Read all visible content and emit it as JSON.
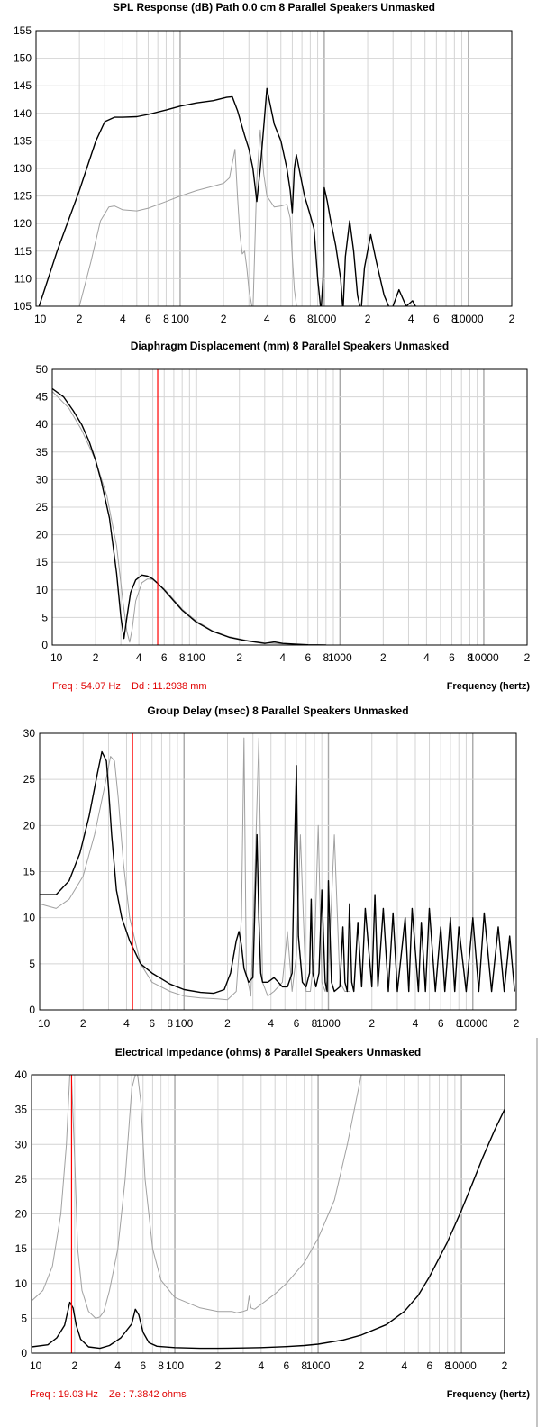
{
  "chart_data": [
    {
      "type": "line",
      "title": "SPL Response (dB)   Path 0.0 cm   8 Parallel Speakers   Unmasked",
      "xscale": "log",
      "xlim": [
        10,
        20000
      ],
      "ylim": [
        105,
        155
      ],
      "yticks": [
        105,
        110,
        115,
        120,
        125,
        130,
        135,
        140,
        145,
        150,
        155
      ],
      "xtick_labels": [
        {
          "x": 10,
          "label": "10"
        },
        {
          "x": 20,
          "label": "2"
        },
        {
          "x": 40,
          "label": "4"
        },
        {
          "x": 60,
          "label": "6"
        },
        {
          "x": 80,
          "label": "8"
        },
        {
          "x": 100,
          "label": "100"
        },
        {
          "x": 200,
          "label": "2"
        },
        {
          "x": 400,
          "label": "4"
        },
        {
          "x": 600,
          "label": "6"
        },
        {
          "x": 800,
          "label": "8"
        },
        {
          "x": 1000,
          "label": "1000"
        },
        {
          "x": 2000,
          "label": "2"
        },
        {
          "x": 4000,
          "label": "4"
        },
        {
          "x": 6000,
          "label": "6"
        },
        {
          "x": 8000,
          "label": "8"
        },
        {
          "x": 10000,
          "label": "10000"
        },
        {
          "x": 20000,
          "label": "2"
        }
      ],
      "series": [
        {
          "color": "#000000",
          "x": [
            10.5,
            14,
            20,
            26,
            30,
            35,
            40,
            50,
            60,
            80,
            100,
            130,
            170,
            210,
            230,
            250,
            280,
            300,
            320,
            330,
            340,
            360,
            400,
            450,
            500,
            550,
            580,
            600,
            620,
            640,
            680,
            730,
            790,
            850,
            900,
            950,
            980,
            1000,
            1050,
            1100,
            1200,
            1300,
            1350,
            1400,
            1500,
            1600,
            1700,
            1800,
            1900,
            2100,
            2300,
            2600,
            2900,
            3300,
            3700,
            4100,
            4500
          ],
          "y": [
            105,
            115,
            126,
            135,
            138.5,
            139.3,
            139.3,
            139.4,
            139.8,
            140.6,
            141.3,
            141.9,
            142.3,
            142.9,
            143,
            140.5,
            136,
            133.5,
            130,
            127,
            124,
            130,
            144.5,
            138,
            135,
            130,
            126,
            122,
            130,
            132.5,
            129,
            125,
            122,
            119,
            110,
            104,
            110,
            126.5,
            124,
            121,
            116,
            110,
            104,
            114,
            120.5,
            115,
            107,
            104,
            112,
            118,
            113,
            107,
            104,
            108,
            105,
            106,
            104
          ]
        },
        {
          "color": "#a0a0a0",
          "x": [
            20,
            24,
            28,
            32,
            35,
            40,
            50,
            60,
            80,
            100,
            130,
            170,
            200,
            220,
            240,
            250,
            260,
            270,
            280,
            290,
            300,
            320,
            340,
            360,
            380,
            400,
            450,
            500,
            550,
            580,
            600,
            620,
            650,
            700,
            750,
            800,
            900,
            1000,
            1100,
            1300,
            1500,
            1800
          ],
          "y": [
            105,
            113,
            120.5,
            123,
            123.2,
            122.5,
            122.3,
            122.8,
            124,
            125,
            126,
            126.8,
            127.3,
            128.3,
            133.5,
            125,
            118,
            114.5,
            115,
            112,
            108,
            104,
            128,
            137,
            129,
            125,
            123,
            123.2,
            123.5,
            121,
            114,
            108,
            104,
            104,
            104,
            104,
            104,
            104,
            104,
            104,
            104,
            104
          ]
        }
      ]
    },
    {
      "type": "line",
      "title": "Diaphragm Displacement (mm)   8 Parallel Speakers   Unmasked",
      "xscale": "log",
      "xlim": [
        10,
        20000
      ],
      "ylim": [
        0,
        50
      ],
      "yticks": [
        0,
        5,
        10,
        15,
        20,
        25,
        30,
        35,
        40,
        45,
        50
      ],
      "xtick_labels": [
        {
          "x": 10,
          "label": "10"
        },
        {
          "x": 20,
          "label": "2"
        },
        {
          "x": 40,
          "label": "4"
        },
        {
          "x": 60,
          "label": "6"
        },
        {
          "x": 80,
          "label": "8"
        },
        {
          "x": 100,
          "label": "100"
        },
        {
          "x": 200,
          "label": "2"
        },
        {
          "x": 400,
          "label": "4"
        },
        {
          "x": 600,
          "label": "6"
        },
        {
          "x": 800,
          "label": "8"
        },
        {
          "x": 1000,
          "label": "1000"
        },
        {
          "x": 2000,
          "label": "2"
        },
        {
          "x": 4000,
          "label": "4"
        },
        {
          "x": 6000,
          "label": "6"
        },
        {
          "x": 8000,
          "label": "8"
        },
        {
          "x": 10000,
          "label": "10000"
        },
        {
          "x": 20000,
          "label": "2"
        }
      ],
      "marker_x": 54.07,
      "readout": {
        "freq": "Freq : 54.07 Hz",
        "value": "Dd : 11.2938 mm"
      },
      "xaxis_label": "Frequency (hertz)",
      "series": [
        {
          "color": "#000000",
          "x": [
            10,
            12,
            14,
            16,
            18,
            20,
            22,
            25,
            28,
            30,
            31.5,
            33,
            35,
            38,
            42,
            46,
            50,
            55,
            60,
            70,
            80,
            100,
            130,
            170,
            220,
            300,
            350,
            400,
            500,
            600,
            800
          ],
          "y": [
            46.5,
            45,
            42.5,
            40,
            37,
            33.5,
            29.5,
            23,
            13,
            5,
            1.2,
            5,
            9.5,
            11.8,
            12.7,
            12.5,
            12,
            11,
            10,
            8,
            6.3,
            4.2,
            2.5,
            1.4,
            0.8,
            0.3,
            0.55,
            0.3,
            0.15,
            0.05,
            0
          ]
        },
        {
          "color": "#a0a0a0",
          "x": [
            10,
            13,
            16,
            20,
            24,
            28,
            31,
            33,
            34.5,
            36,
            38,
            42,
            46,
            50,
            60,
            80,
            100,
            130,
            170,
            220,
            300,
            400,
            600
          ],
          "y": [
            46,
            43,
            39,
            33.5,
            27,
            18,
            8,
            2.5,
            0.5,
            3,
            8,
            11.3,
            12,
            11.9,
            10.2,
            6.5,
            4.4,
            2.6,
            1.5,
            0.9,
            0.4,
            0.2,
            0.05
          ]
        }
      ]
    },
    {
      "type": "line",
      "title": "Group Delay (msec)   8 Parallel Speakers   Unmasked",
      "xscale": "log",
      "xlim": [
        10,
        20000
      ],
      "ylim": [
        0,
        30
      ],
      "yticks": [
        0,
        5,
        10,
        15,
        20,
        25,
        30
      ],
      "xtick_labels": [
        {
          "x": 10,
          "label": "10"
        },
        {
          "x": 20,
          "label": "2"
        },
        {
          "x": 40,
          "label": "4"
        },
        {
          "x": 60,
          "label": "6"
        },
        {
          "x": 80,
          "label": "8"
        },
        {
          "x": 100,
          "label": "100"
        },
        {
          "x": 200,
          "label": "2"
        },
        {
          "x": 400,
          "label": "4"
        },
        {
          "x": 600,
          "label": "6"
        },
        {
          "x": 800,
          "label": "8"
        },
        {
          "x": 1000,
          "label": "1000"
        },
        {
          "x": 2000,
          "label": "2"
        },
        {
          "x": 4000,
          "label": "4"
        },
        {
          "x": 6000,
          "label": "6"
        },
        {
          "x": 8000,
          "label": "8"
        },
        {
          "x": 10000,
          "label": "10000"
        },
        {
          "x": 20000,
          "label": "2"
        }
      ],
      "marker_x": 44,
      "series": [
        {
          "color": "#000000",
          "x": [
            10,
            13,
            16,
            19,
            22,
            25,
            27,
            29,
            30,
            31.5,
            34,
            37,
            42,
            50,
            60,
            80,
            100,
            130,
            160,
            190,
            210,
            230,
            240,
            250,
            260,
            280,
            300,
            320,
            330,
            340,
            350,
            380,
            420,
            450,
            480,
            520,
            560,
            580,
            600,
            620,
            660,
            700,
            740,
            760,
            780,
            820,
            860,
            900,
            950,
            980,
            1000,
            1050,
            1100,
            1200,
            1260,
            1300,
            1350,
            1400,
            1450,
            1500,
            1600,
            1700,
            1800,
            2000,
            2100,
            2200,
            2400,
            2600,
            2800,
            3000,
            3400,
            3600,
            3800,
            4200,
            4400,
            4700,
            5000,
            5500,
            6000,
            6400,
            7000,
            7500,
            8000,
            9000,
            10000,
            11000,
            12000,
            13500,
            15000,
            16500,
            18000,
            19500
          ],
          "y": [
            12.5,
            12.5,
            14,
            17,
            21,
            25.5,
            28,
            27,
            24,
            19,
            13,
            10,
            7.5,
            5,
            4,
            2.8,
            2.2,
            1.9,
            1.8,
            2.2,
            4,
            7.5,
            8.5,
            7,
            4.5,
            3,
            3.5,
            19,
            10,
            4,
            3,
            3,
            3.5,
            3,
            2.5,
            2.5,
            4,
            16.5,
            26.5,
            8,
            3,
            2.5,
            4,
            12,
            4,
            2.5,
            4,
            13,
            3,
            2,
            14,
            3,
            2,
            2.5,
            9,
            3,
            2,
            11.5,
            3,
            2,
            9.5,
            2.5,
            11,
            2.5,
            12.5,
            2.5,
            11,
            2,
            10.5,
            2,
            10,
            2,
            11,
            2,
            9.5,
            2,
            11,
            2,
            9,
            2,
            10,
            2,
            9,
            2,
            10,
            2,
            10.5,
            2,
            9,
            2,
            8,
            2
          ]
        },
        {
          "color": "#a0a0a0",
          "x": [
            10,
            13,
            16,
            20,
            24,
            28,
            31,
            33,
            35,
            38,
            42,
            50,
            60,
            80,
            100,
            130,
            170,
            200,
            230,
            250,
            260,
            270,
            290,
            310,
            330,
            350,
            380,
            420,
            480,
            520,
            560,
            600,
            640,
            700,
            750,
            800,
            850,
            900,
            950,
            1000,
            1100,
            1200,
            1300,
            1400
          ],
          "y": [
            11.5,
            11,
            12,
            14.5,
            19,
            24,
            27.5,
            27,
            23,
            16,
            10,
            5,
            3,
            2,
            1.5,
            1.3,
            1.2,
            1.1,
            2,
            10,
            29.5,
            4,
            1.5,
            15,
            29.5,
            3,
            1.5,
            2,
            3,
            8.5,
            2,
            6,
            19,
            2,
            2,
            6,
            20,
            3,
            2,
            4,
            19,
            3,
            2,
            2
          ]
        }
      ]
    },
    {
      "type": "line",
      "title": "Electrical Impedance (ohms)   8 Parallel Speakers   Unmasked",
      "xscale": "log",
      "xlim": [
        10,
        20000
      ],
      "ylim": [
        0,
        40
      ],
      "yticks": [
        0,
        5,
        10,
        15,
        20,
        25,
        30,
        35,
        40
      ],
      "xtick_labels": [
        {
          "x": 10,
          "label": "10"
        },
        {
          "x": 20,
          "label": "2"
        },
        {
          "x": 40,
          "label": "4"
        },
        {
          "x": 60,
          "label": "6"
        },
        {
          "x": 80,
          "label": "8"
        },
        {
          "x": 100,
          "label": "100"
        },
        {
          "x": 200,
          "label": "2"
        },
        {
          "x": 400,
          "label": "4"
        },
        {
          "x": 600,
          "label": "6"
        },
        {
          "x": 800,
          "label": "8"
        },
        {
          "x": 1000,
          "label": "1000"
        },
        {
          "x": 2000,
          "label": "2"
        },
        {
          "x": 4000,
          "label": "4"
        },
        {
          "x": 6000,
          "label": "6"
        },
        {
          "x": 8000,
          "label": "8"
        },
        {
          "x": 10000,
          "label": "10000"
        },
        {
          "x": 20000,
          "label": "2"
        }
      ],
      "marker_x": 19.03,
      "readout": {
        "freq": "Freq : 19.03 Hz",
        "value": "Ze : 7.3842 ohms"
      },
      "xaxis_label": "Frequency (hertz)",
      "series": [
        {
          "color": "#000000",
          "x": [
            10,
            13,
            15,
            17,
            18.5,
            19.5,
            20.5,
            22,
            25,
            30,
            35,
            42,
            50,
            53,
            56,
            60,
            66,
            75,
            100,
            150,
            200,
            300,
            400,
            600,
            800,
            1000,
            1500,
            2000,
            3000,
            4000,
            5000,
            6000,
            8000,
            10000,
            12000,
            14000,
            17000,
            20000
          ],
          "y": [
            0.9,
            1.2,
            2.2,
            4,
            7.3,
            6.5,
            4,
            2,
            0.9,
            0.7,
            1.1,
            2.2,
            4.2,
            6.3,
            5.5,
            3,
            1.5,
            1,
            0.8,
            0.7,
            0.7,
            0.75,
            0.8,
            0.95,
            1.1,
            1.3,
            1.9,
            2.6,
            4.1,
            6,
            8.3,
            11,
            16,
            20.5,
            24.5,
            28,
            32,
            35
          ]
        },
        {
          "color": "#a0a0a0",
          "x": [
            10,
            12,
            14,
            16,
            17.5,
            18.5,
            19,
            20,
            21,
            22.5,
            25,
            28,
            30,
            32,
            35,
            40,
            45,
            50,
            53,
            55,
            58,
            62,
            70,
            80,
            100,
            150,
            200,
            250,
            270,
            300,
            320,
            330,
            340,
            360,
            400,
            500,
            600,
            800,
            1000,
            1300,
            1600,
            2000
          ],
          "y": [
            7.5,
            9,
            12.5,
            20,
            30,
            40,
            40,
            28,
            15,
            9,
            6,
            5,
            5.2,
            6,
            9,
            15,
            25,
            38,
            40,
            40,
            36,
            25,
            15,
            10.5,
            8,
            6.5,
            6,
            6,
            5.8,
            6,
            6.2,
            8.2,
            6.5,
            6.3,
            7,
            8.5,
            10,
            13,
            16.5,
            22,
            30,
            40
          ]
        }
      ]
    }
  ]
}
